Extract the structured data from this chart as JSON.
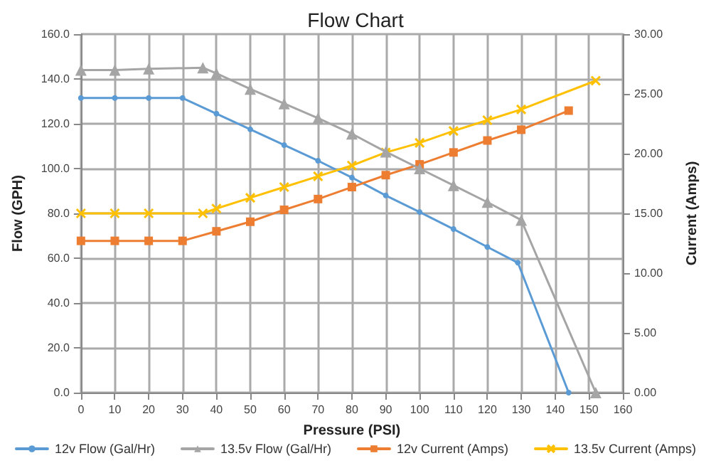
{
  "chart_data": {
    "type": "line",
    "title": "Flow Chart",
    "xlabel": "Pressure (PSI)",
    "ylabel": "Flow (GPH)",
    "y2label": "Current (Amps)",
    "xlim": [
      0,
      160
    ],
    "xticks": [
      0,
      10,
      20,
      30,
      40,
      50,
      60,
      70,
      80,
      90,
      100,
      110,
      120,
      130,
      140,
      150,
      160
    ],
    "ylim": [
      0,
      160
    ],
    "yticks": [
      {
        "value": 0,
        "label": "0.0"
      },
      {
        "value": 20,
        "label": "20.0"
      },
      {
        "value": 40,
        "label": "40.0"
      },
      {
        "value": 60,
        "label": "60.0"
      },
      {
        "value": 80,
        "label": "80.0"
      },
      {
        "value": 100,
        "label": "100.0"
      },
      {
        "value": 120,
        "label": "120.0"
      },
      {
        "value": 140,
        "label": "140.0"
      },
      {
        "value": 160,
        "label": "160.0"
      }
    ],
    "y2lim": [
      0,
      30
    ],
    "y2ticks": [
      {
        "value": 0,
        "label": "0.00"
      },
      {
        "value": 5,
        "label": "5.00"
      },
      {
        "value": 10,
        "label": "10.00"
      },
      {
        "value": 15,
        "label": "15.00"
      },
      {
        "value": 20,
        "label": "20.00"
      },
      {
        "value": 25,
        "label": "25.00"
      },
      {
        "value": 30,
        "label": "30.00"
      }
    ],
    "grid": true,
    "legend": "bottom",
    "line_style": "solid",
    "series": [
      {
        "name": "12v Flow (Gal/Hr)",
        "color": "#5b9bd5",
        "marker": "circle",
        "x": [
          0,
          10,
          20,
          30,
          40,
          50,
          60,
          70,
          80,
          90,
          100,
          110,
          120,
          129,
          144
        ],
        "values": [
          131.5,
          131.5,
          131.5,
          131.5,
          124.5,
          117.5,
          110.5,
          103.5,
          96,
          88,
          80.6,
          73,
          65,
          58,
          0
        ]
      },
      {
        "name": "13.5v Flow (Gal/Hr)",
        "color": "#a5a5a5",
        "marker": "triangle",
        "x": [
          0,
          10,
          20,
          36,
          40,
          50,
          60,
          70,
          80,
          90,
          100,
          110,
          120,
          130,
          152
        ],
        "values": [
          144,
          144,
          144.5,
          145,
          142.5,
          135.5,
          129,
          122.5,
          115.5,
          107.5,
          100,
          92.5,
          85,
          77,
          0
        ]
      },
      {
        "name": "12v Current (Amps)",
        "color": "#ed7d31",
        "marker": "square",
        "axis": "y2",
        "x": [
          0,
          10,
          20,
          30,
          40,
          50,
          60,
          70,
          80,
          90,
          100,
          110,
          120,
          130,
          144
        ],
        "values": [
          12.7,
          12.7,
          12.7,
          12.7,
          13.5,
          14.3,
          15.3,
          16.2,
          17.2,
          18.2,
          19.1,
          20.1,
          21.1,
          22,
          23.6
        ]
      },
      {
        "name": "13.5v Current (Amps)",
        "color": "#ffc000",
        "marker": "cross",
        "axis": "y2",
        "x": [
          0,
          10,
          20,
          36,
          40,
          50,
          60,
          70,
          80,
          90,
          100,
          110,
          120,
          130,
          152
        ],
        "values": [
          15,
          15,
          15,
          15,
          15.4,
          16.3,
          17.2,
          18.1,
          19,
          20.1,
          20.9,
          21.9,
          22.8,
          23.7,
          26.1
        ]
      }
    ]
  }
}
